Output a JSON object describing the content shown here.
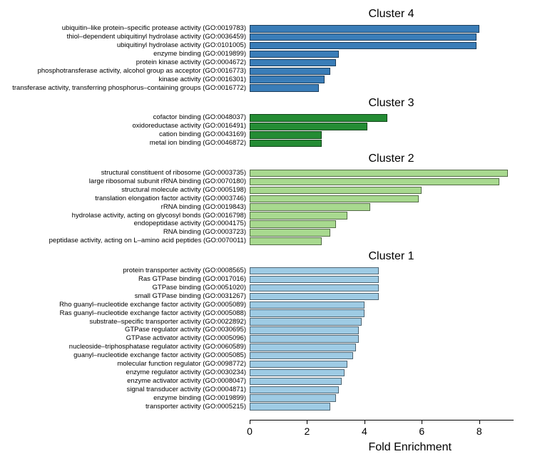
{
  "chart": {
    "type": "bar",
    "x_axis": {
      "title": "Fold Enrichment",
      "title_fontsize": 16,
      "min": 0,
      "max": 9.2,
      "ticks": [
        0,
        2,
        4,
        6,
        8
      ],
      "tick_fontsize": 14,
      "axis_color": "#000000"
    },
    "background_color": "#ffffff",
    "bar_border_color": "#00000080",
    "clusters": [
      {
        "title": "Cluster 4",
        "title_fontsize": 16,
        "color": "#3a7db8",
        "bars": [
          {
            "label": "ubiquitin–like protein–specific protease activity (GO:0019783)",
            "value": 8.0
          },
          {
            "label": "thiol–dependent ubiquitinyl hydrolase activity (GO:0036459)",
            "value": 7.9
          },
          {
            "label": "ubiquitinyl hydrolase activity (GO:0101005)",
            "value": 7.9
          },
          {
            "label": "enzyme binding (GO:0019899)",
            "value": 3.1
          },
          {
            "label": "protein kinase activity (GO:0004672)",
            "value": 3.0
          },
          {
            "label": "phosphotransferase activity, alcohol group as acceptor (GO:0016773)",
            "value": 2.8
          },
          {
            "label": "kinase activity (GO:0016301)",
            "value": 2.6
          },
          {
            "label": "transferase activity, transferring phosphorus–containing groups (GO:0016772)",
            "value": 2.4
          }
        ]
      },
      {
        "title": "Cluster 3",
        "title_fontsize": 16,
        "color": "#248c34",
        "bars": [
          {
            "label": "cofactor binding (GO:0048037)",
            "value": 4.8
          },
          {
            "label": "oxidoreductase activity (GO:0016491)",
            "value": 4.1
          },
          {
            "label": "cation binding (GO:0043169)",
            "value": 2.5
          },
          {
            "label": "metal ion binding (GO:0046872)",
            "value": 2.5
          }
        ]
      },
      {
        "title": "Cluster 2",
        "title_fontsize": 16,
        "color": "#a8d98f",
        "bars": [
          {
            "label": "structural constituent of ribosome (GO:0003735)",
            "value": 9.0
          },
          {
            "label": "large ribosomal subunit rRNA binding (GO:0070180)",
            "value": 8.7
          },
          {
            "label": "structural molecule activity (GO:0005198)",
            "value": 6.0
          },
          {
            "label": "translation elongation factor activity (GO:0003746)",
            "value": 5.9
          },
          {
            "label": "rRNA binding (GO:0019843)",
            "value": 4.2
          },
          {
            "label": "hydrolase activity, acting on glycosyl bonds (GO:0016798)",
            "value": 3.4
          },
          {
            "label": "endopeptidase activity (GO:0004175)",
            "value": 3.0
          },
          {
            "label": "RNA binding (GO:0003723)",
            "value": 2.8
          },
          {
            "label": "peptidase activity, acting on L–amino acid peptides (GO:0070011)",
            "value": 2.5
          }
        ]
      },
      {
        "title": "Cluster 1",
        "title_fontsize": 16,
        "color": "#9ecbe4",
        "bars": [
          {
            "label": "protein transporter activity (GO:0008565)",
            "value": 4.5
          },
          {
            "label": "Ras GTPase binding (GO:0017016)",
            "value": 4.5
          },
          {
            "label": "GTPase binding (GO:0051020)",
            "value": 4.5
          },
          {
            "label": "small GTPase binding (GO:0031267)",
            "value": 4.5
          },
          {
            "label": "Rho guanyl–nucleotide exchange factor activity (GO:0005089)",
            "value": 4.0
          },
          {
            "label": "Ras guanyl–nucleotide exchange factor activity (GO:0005088)",
            "value": 4.0
          },
          {
            "label": "substrate–specific transporter activity (GO:0022892)",
            "value": 3.9
          },
          {
            "label": "GTPase regulator activity (GO:0030695)",
            "value": 3.8
          },
          {
            "label": "GTPase activator activity (GO:0005096)",
            "value": 3.8
          },
          {
            "label": "nucleoside–triphosphatase regulator activity (GO:0060589)",
            "value": 3.7
          },
          {
            "label": "guanyl–nucleotide exchange factor activity (GO:0005085)",
            "value": 3.6
          },
          {
            "label": "molecular function regulator (GO:0098772)",
            "value": 3.4
          },
          {
            "label": "enzyme regulator activity (GO:0030234)",
            "value": 3.3
          },
          {
            "label": "enzyme activator activity (GO:0008047)",
            "value": 3.2
          },
          {
            "label": "signal transducer activity (GO:0004871)",
            "value": 3.1
          },
          {
            "label": "enzyme binding (GO:0019899)",
            "value": 3.0
          },
          {
            "label": "transporter activity (GO:0005215)",
            "value": 2.8
          }
        ]
      }
    ]
  }
}
